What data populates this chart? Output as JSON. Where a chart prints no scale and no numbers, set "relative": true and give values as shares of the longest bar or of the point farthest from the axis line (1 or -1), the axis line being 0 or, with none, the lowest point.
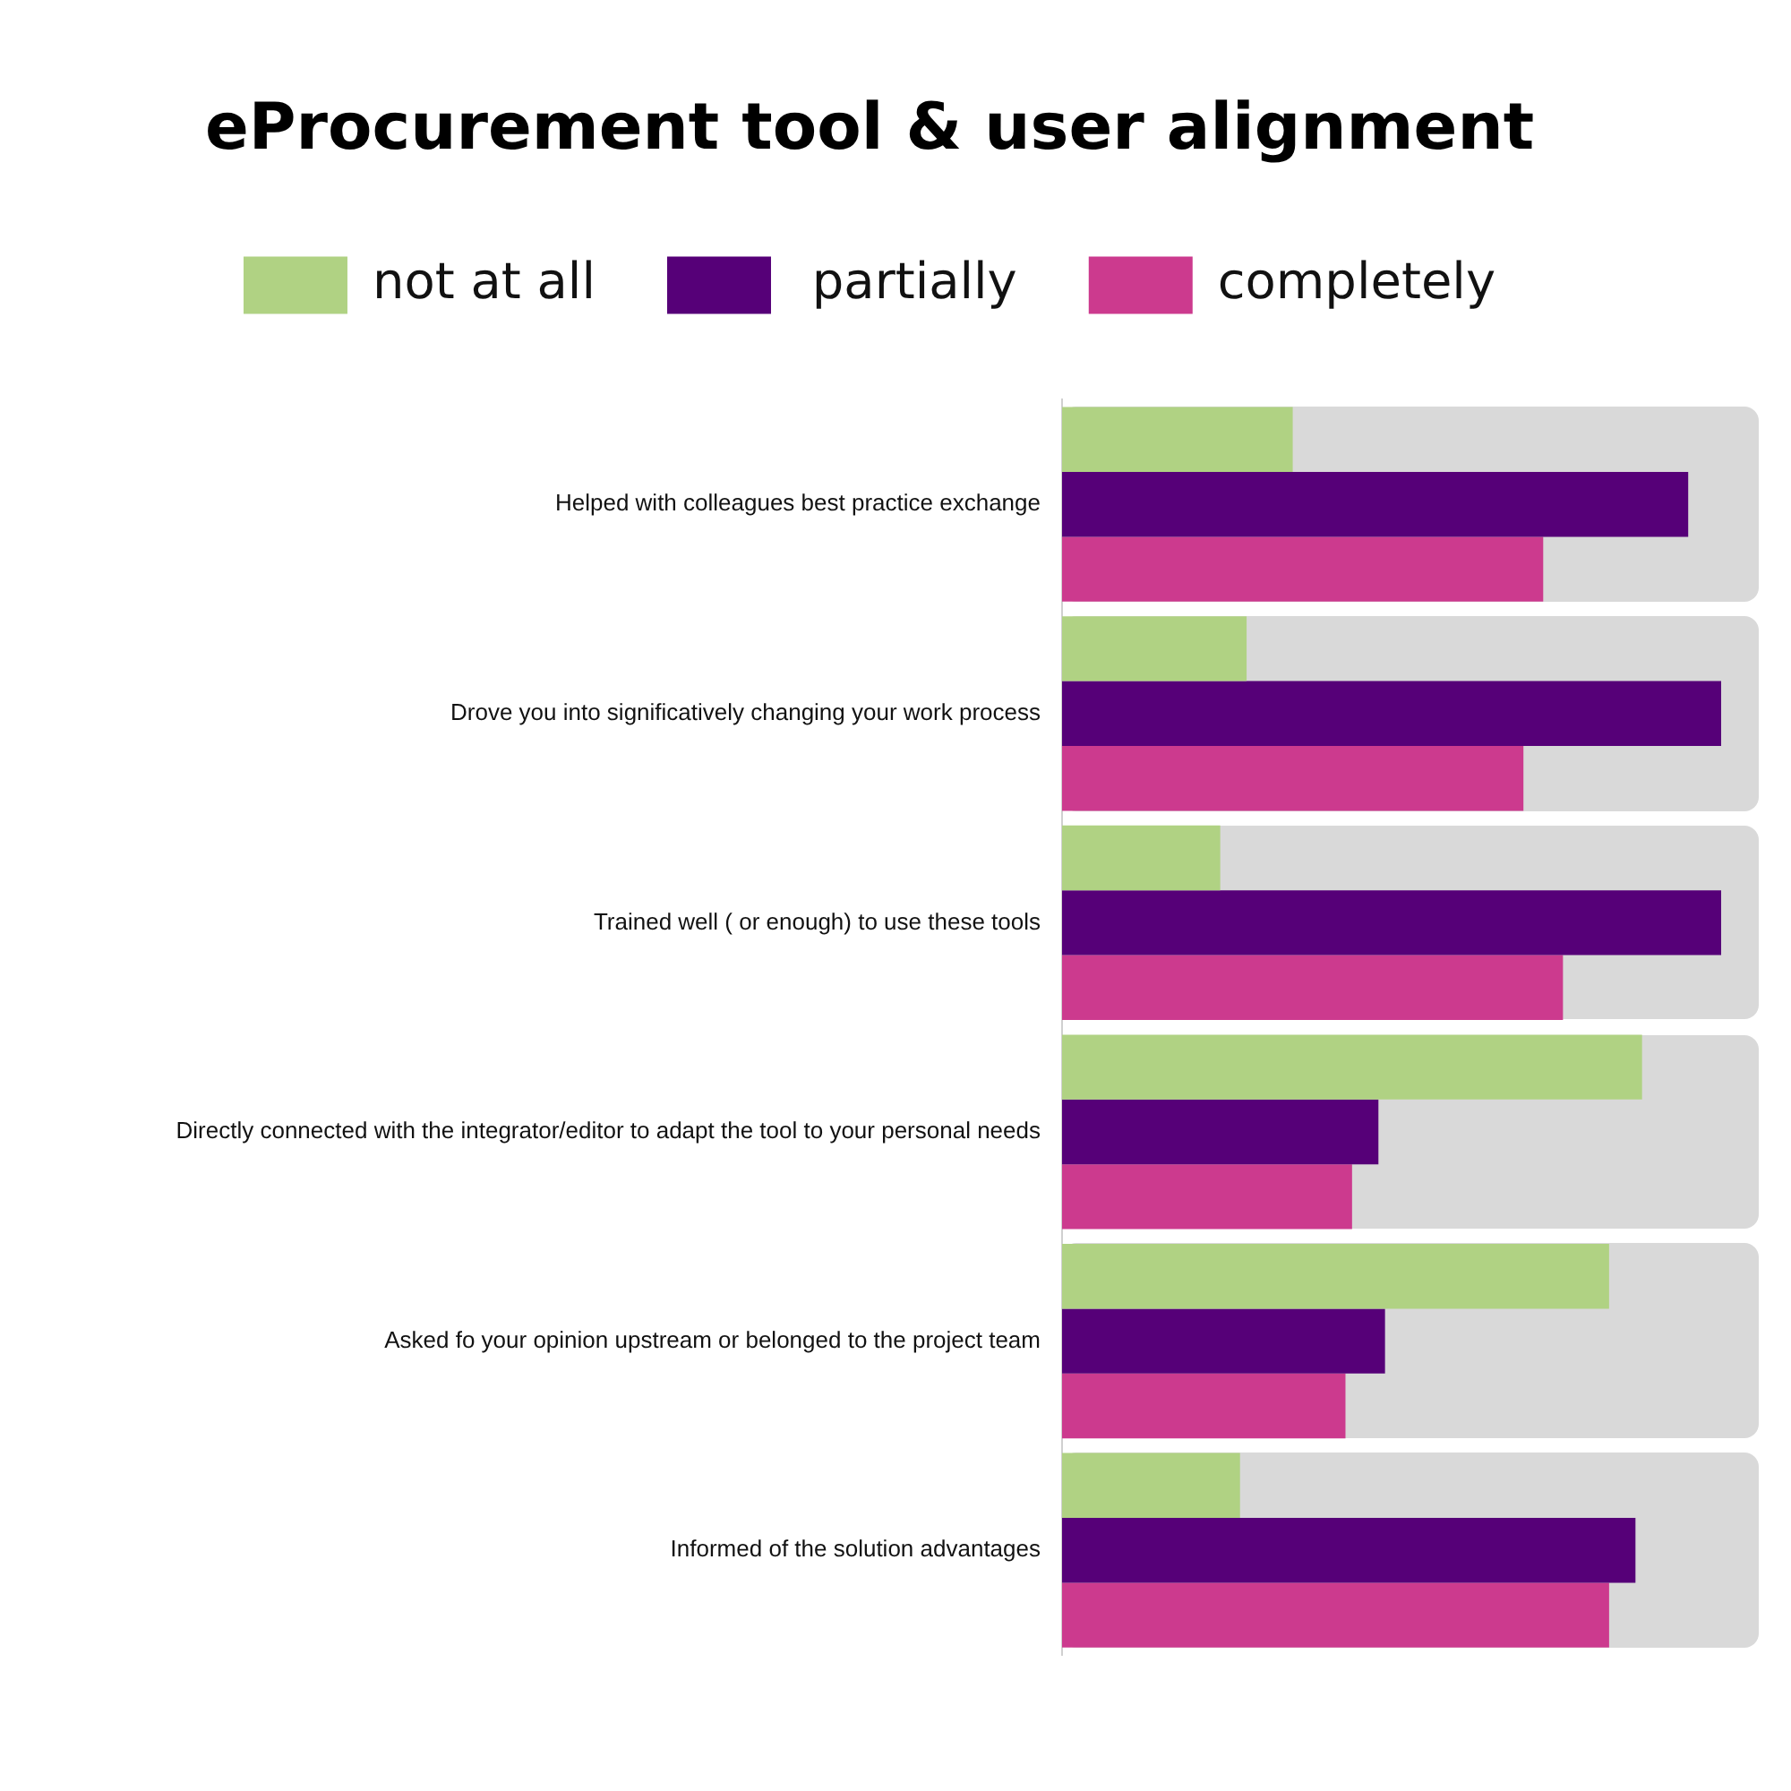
{
  "chart_data": {
    "type": "bar",
    "orientation": "horizontal",
    "relative": true,
    "title": "eProcurement tool & user alignment",
    "legend": "top",
    "categories": [
      "Helped with colleagues best practice exchange",
      "Drove you into significatively changing your work process",
      "Trained well ( or enough) to use these tools",
      "Directly connected with the integrator/editor to adapt the tool to your personal needs",
      "Asked fo your opinion upstream or belonged to the project team",
      "Informed of the solution advantages"
    ],
    "series": [
      {
        "name": "not at all",
        "color": "#b0d283",
        "values": [
          0.35,
          0.28,
          0.24,
          0.88,
          0.83,
          0.27
        ]
      },
      {
        "name": " partially",
        "color": "#560078",
        "values": [
          0.95,
          1,
          1,
          0.48,
          0.49,
          0.87
        ]
      },
      {
        "name": "completely",
        "color": "#cc3a8e",
        "values": [
          0.73,
          0.7,
          0.76,
          0.44,
          0.43,
          0.83
        ]
      }
    ]
  }
}
